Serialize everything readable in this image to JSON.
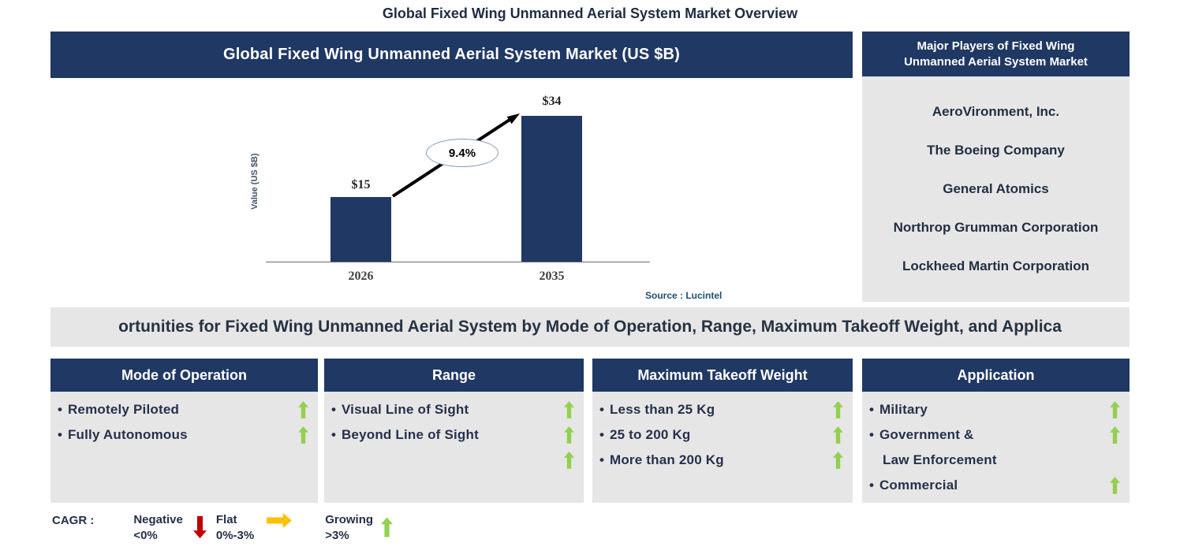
{
  "page_title": "Global Fixed Wing Unmanned Aerial System Market Overview",
  "chart_card": {
    "header": "Global Fixed Wing Unmanned Aerial System Market (US $B)",
    "source": "Source : Lucintel"
  },
  "chart_data": {
    "type": "bar",
    "title": "Global Fixed Wing Unmanned Aerial System Market (US $B)",
    "categories": [
      "2026",
      "2035"
    ],
    "values": [
      15,
      34
    ],
    "bar_labels": [
      "$15",
      "$34"
    ],
    "ylabel": "Value (US $B)",
    "cagr_label": "9.4%",
    "ylim": [
      0,
      34
    ],
    "grid": false,
    "legend_position": "none",
    "bar_color": "#203864"
  },
  "major_players": {
    "header": "Major Players of Fixed Wing Unmanned Aerial System Market",
    "companies": [
      "AeroVironment, Inc.",
      "The Boeing Company",
      "General Atomics",
      "Northrop Grumman Corporation",
      "Lockheed Martin Corporation"
    ]
  },
  "banner": {
    "text": "ortunities for Fixed Wing Unmanned Aerial System by Mode of Operation, Range, Maximum Takeoff Weight, and Applica"
  },
  "ui": {
    "bullet": "•"
  },
  "segments": [
    {
      "header": "Mode of Operation",
      "items": [
        {
          "label": "Remotely Piloted",
          "trend": "growing"
        },
        {
          "label": "Fully Autonomous",
          "trend": "growing"
        }
      ]
    },
    {
      "header": "Range",
      "items": [
        {
          "label": "Visual Line of Sight",
          "trend": "growing"
        },
        {
          "label": "Beyond Line of Sight",
          "trend": "growing"
        },
        {
          "label": "",
          "trend": "growing"
        }
      ]
    },
    {
      "header": "Maximum Takeoff Weight",
      "items": [
        {
          "label": "Less than 25 Kg",
          "trend": "growing"
        },
        {
          "label": "25 to 200 Kg",
          "trend": "growing"
        },
        {
          "label": "More than 200 Kg",
          "trend": "growing"
        }
      ]
    },
    {
      "header": "Application",
      "items": [
        {
          "label": "Military",
          "trend": "growing"
        },
        {
          "label": "Government &",
          "trend": "growing"
        },
        {
          "label": "Law Enforcement",
          "trend": "none"
        },
        {
          "label": "Commercial",
          "trend": "growing"
        }
      ]
    }
  ],
  "cagr_legend": {
    "label": "CAGR :",
    "entries": [
      {
        "name": "Negative",
        "range": "<0%",
        "icon": "down-arrow",
        "color": "#C00000"
      },
      {
        "name": "Flat",
        "range": "0%-3%",
        "icon": "right-arrow",
        "color": "#FFC000"
      },
      {
        "name": "Growing",
        "range": ">3%",
        "icon": "up-arrow",
        "color": "#92D050"
      }
    ]
  },
  "colors": {
    "navy": "#203864",
    "panel_gray": "#E7E6E6",
    "growing_green": "#92D050",
    "negative_red": "#C00000",
    "flat_amber": "#FFC000",
    "source_blue": "#1F4E79"
  }
}
